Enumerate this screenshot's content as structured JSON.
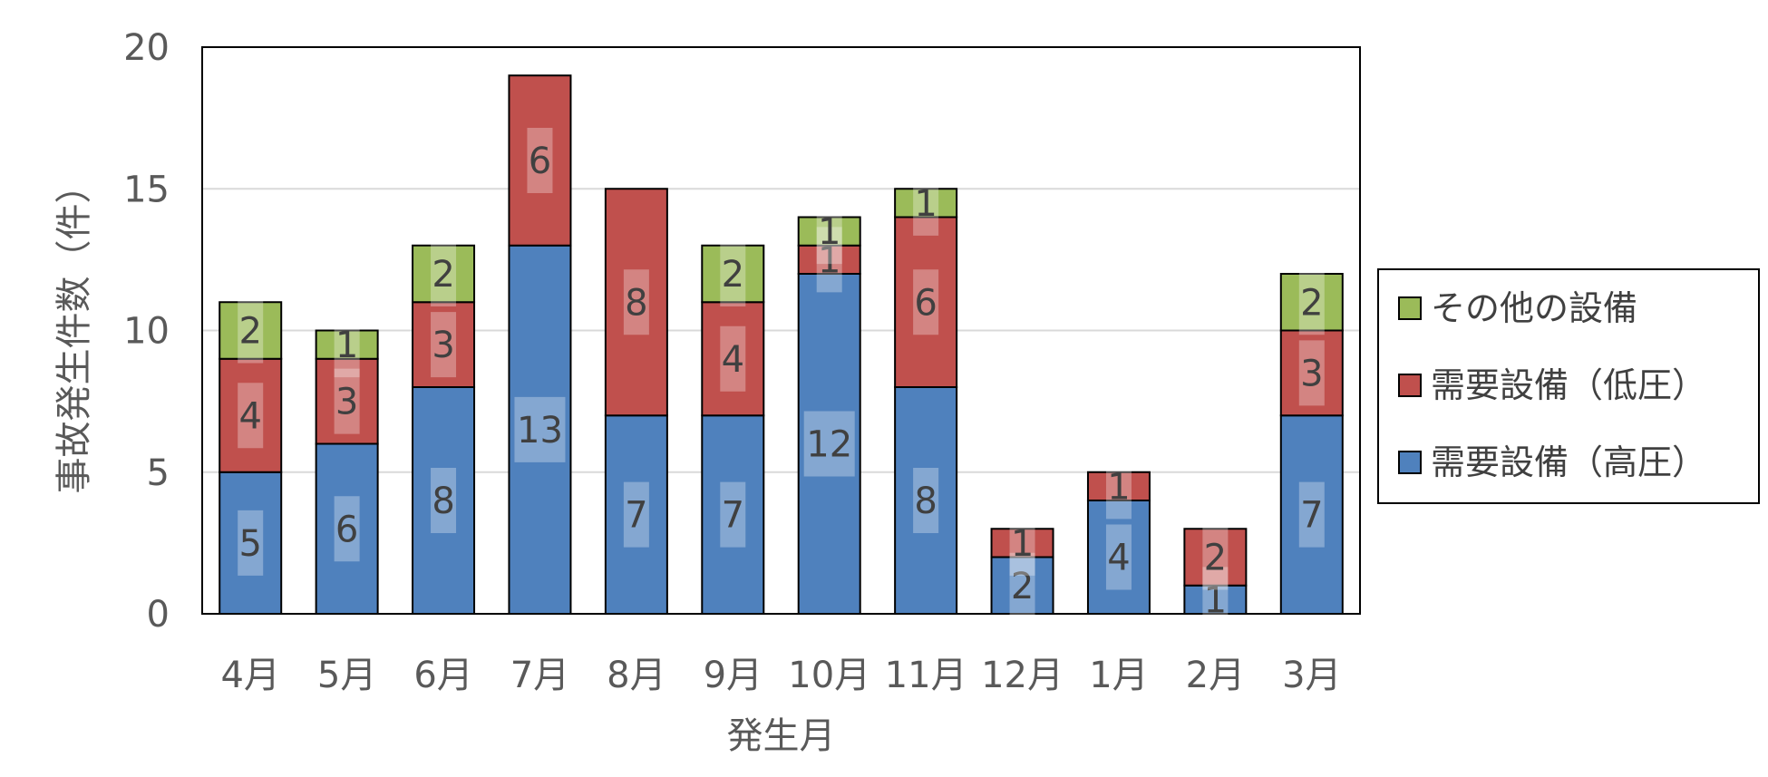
{
  "chart_data": {
    "type": "bar",
    "stacked": true,
    "title": "",
    "xlabel": "発生月",
    "ylabel": "事故発生件数（件）",
    "ylim": [
      0,
      20
    ],
    "yticks": [
      0,
      5,
      10,
      15,
      20
    ],
    "grid": true,
    "legend_position": "right",
    "categories": [
      "4月",
      "5月",
      "6月",
      "7月",
      "8月",
      "9月",
      "10月",
      "11月",
      "12月",
      "1月",
      "2月",
      "3月"
    ],
    "series": [
      {
        "name": "需要設備（高圧）",
        "color": "#4f81bd",
        "values": [
          5,
          6,
          8,
          13,
          7,
          7,
          12,
          8,
          2,
          4,
          1,
          7
        ]
      },
      {
        "name": "需要設備（低圧）",
        "color": "#c0504d",
        "values": [
          4,
          3,
          3,
          6,
          8,
          4,
          1,
          6,
          1,
          1,
          2,
          3
        ]
      },
      {
        "name": "その他の設備",
        "color": "#9bbb59",
        "values": [
          2,
          1,
          2,
          0,
          0,
          2,
          1,
          1,
          0,
          0,
          0,
          2
        ]
      }
    ]
  }
}
